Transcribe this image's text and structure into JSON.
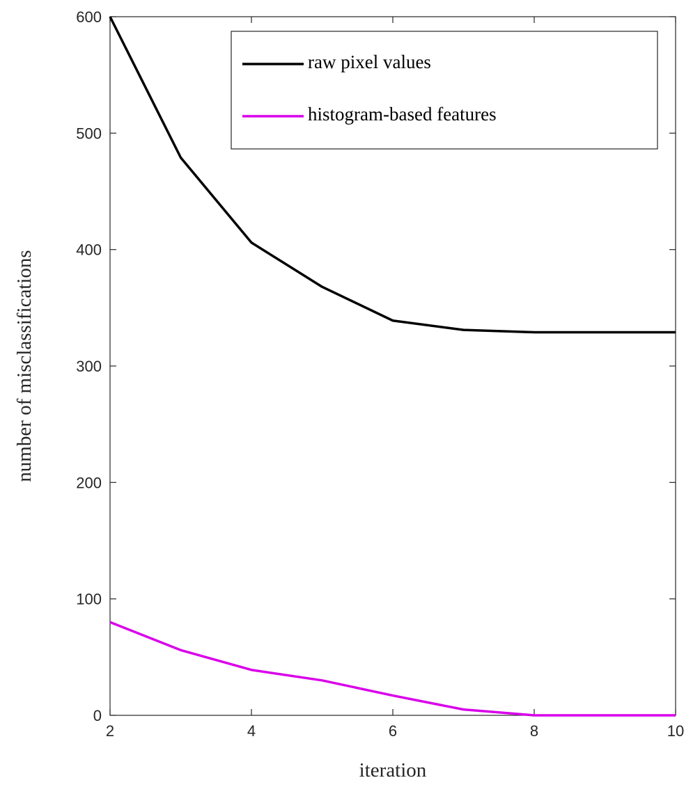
{
  "chart_data": {
    "type": "line",
    "x": [
      2,
      3,
      4,
      5,
      6,
      7,
      8,
      9,
      10
    ],
    "series": [
      {
        "name": "raw pixel values",
        "color": "#000000",
        "values": [
          600,
          479,
          406,
          368,
          339,
          331,
          329,
          329,
          329
        ]
      },
      {
        "name": "histogram-based features",
        "color": "#d900ea",
        "values": [
          80,
          56,
          39,
          30,
          17,
          5,
          0,
          0,
          0
        ]
      }
    ],
    "xlabel": "iteration",
    "ylabel": "number of misclassifications",
    "xlim": [
      2,
      10
    ],
    "xticks": [
      2,
      4,
      6,
      8,
      10
    ],
    "ylim": [
      0,
      600
    ],
    "yticks": [
      0,
      100,
      200,
      300,
      400,
      500,
      600
    ],
    "legend": "upper right",
    "grid": false
  }
}
